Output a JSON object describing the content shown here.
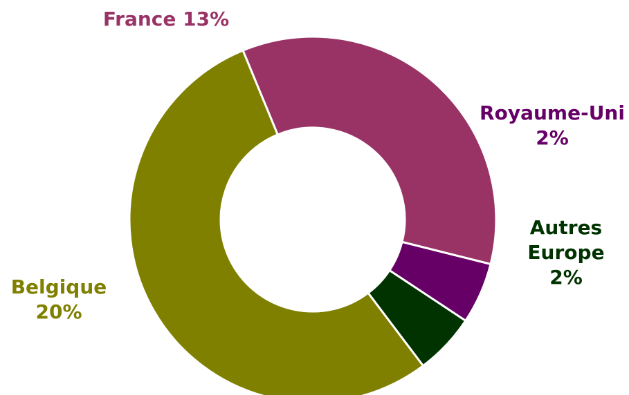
{
  "chart_data": {
    "type": "pie",
    "donut": true,
    "categories": [
      "France",
      "Royaume-Uni",
      "Autres Europe",
      "Belgique"
    ],
    "values": [
      13,
      2,
      2,
      20
    ],
    "value_labels": [
      "13%",
      "2%",
      "2%",
      "20%"
    ],
    "colors": [
      "#993366",
      "#660066",
      "#003300",
      "#808000"
    ],
    "start_angle_deg": -22.4,
    "title": "",
    "legend": "none"
  },
  "labels": {
    "france": {
      "name": "France",
      "value": "13%"
    },
    "royaume": {
      "name": "Royaume-Uni",
      "value": "2%"
    },
    "autres": {
      "line1": "Autres",
      "line2": "Europe",
      "value": "2%"
    },
    "belgique": {
      "name": "Belgique",
      "value": "20%"
    }
  }
}
